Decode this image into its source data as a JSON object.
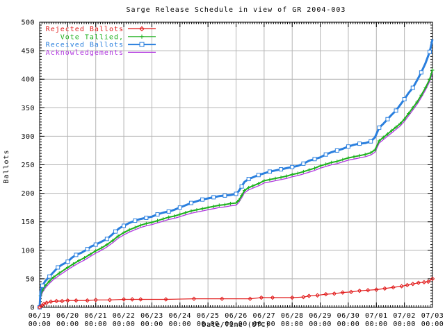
{
  "chart": {
    "title": "Sarge Release Schedule in view of GR 2004-003",
    "xlabel": "Date/Time (UTC)",
    "ylabel": "Ballots"
  },
  "chart_data": {
    "type": "line",
    "title": "Sarge Release Schedule in view of GR 2004-003",
    "xlabel": "Date/Time (UTC)",
    "ylabel": "Ballots",
    "x_unit": "days since 06/19 00:00 UTC",
    "xlim": [
      0,
      14
    ],
    "ylim": [
      0,
      500
    ],
    "grid": true,
    "legend_position": "top-left",
    "background": "#ffffff",
    "grid_color": "#b4b4b4",
    "border_color": "#000000",
    "y_ticks": [
      0,
      50,
      100,
      150,
      200,
      250,
      300,
      350,
      400,
      450,
      500
    ],
    "x_ticks": [
      {
        "date": "06/19",
        "time": "00:00"
      },
      {
        "date": "06/20",
        "time": "00:00"
      },
      {
        "date": "06/21",
        "time": "00:00"
      },
      {
        "date": "06/22",
        "time": "00:00"
      },
      {
        "date": "06/23",
        "time": "00:00"
      },
      {
        "date": "06/24",
        "time": "00:00"
      },
      {
        "date": "06/25",
        "time": "00:00"
      },
      {
        "date": "06/26",
        "time": "00:00"
      },
      {
        "date": "06/27",
        "time": "00:00"
      },
      {
        "date": "06/28",
        "time": "00:00"
      },
      {
        "date": "06/29",
        "time": "00:00"
      },
      {
        "date": "06/30",
        "time": "00:00"
      },
      {
        "date": "07/01",
        "time": "00:00"
      },
      {
        "date": "07/02",
        "time": "00:00"
      },
      {
        "date": "07/03",
        "time": "00:00"
      }
    ],
    "series": [
      {
        "name": "Rejected Ballots",
        "color": "#e11919",
        "marker": "diamond",
        "points": [
          [
            0,
            0
          ],
          [
            0.08,
            3
          ],
          [
            0.15,
            6
          ],
          [
            0.25,
            8
          ],
          [
            0.4,
            10
          ],
          [
            0.6,
            11
          ],
          [
            0.8,
            11
          ],
          [
            1.0,
            12
          ],
          [
            1.3,
            12
          ],
          [
            1.7,
            12
          ],
          [
            2.0,
            13
          ],
          [
            2.5,
            13
          ],
          [
            3.0,
            14
          ],
          [
            3.3,
            14
          ],
          [
            3.6,
            14
          ],
          [
            4.5,
            14
          ],
          [
            5.5,
            15
          ],
          [
            6.5,
            15
          ],
          [
            7.5,
            15
          ],
          [
            7.9,
            17
          ],
          [
            8.3,
            17
          ],
          [
            9.0,
            17
          ],
          [
            9.4,
            18
          ],
          [
            9.6,
            20
          ],
          [
            9.9,
            21
          ],
          [
            10.2,
            23
          ],
          [
            10.5,
            24
          ],
          [
            10.8,
            26
          ],
          [
            11.1,
            27
          ],
          [
            11.4,
            29
          ],
          [
            11.7,
            30
          ],
          [
            12.0,
            31
          ],
          [
            12.3,
            33
          ],
          [
            12.6,
            35
          ],
          [
            12.9,
            37
          ],
          [
            13.1,
            39
          ],
          [
            13.3,
            41
          ],
          [
            13.5,
            43
          ],
          [
            13.7,
            44
          ],
          [
            13.85,
            45
          ],
          [
            14,
            50
          ]
        ]
      },
      {
        "name": "Vote Tallied,",
        "color": "#1db01d",
        "marker": "plus",
        "points": [
          [
            0,
            0
          ],
          [
            0.03,
            20
          ],
          [
            0.1,
            30
          ],
          [
            0.2,
            38
          ],
          [
            0.35,
            46
          ],
          [
            0.5,
            53
          ],
          [
            0.7,
            60
          ],
          [
            1.0,
            70
          ],
          [
            1.2,
            76
          ],
          [
            1.4,
            82
          ],
          [
            1.6,
            87
          ],
          [
            1.8,
            93
          ],
          [
            2.0,
            99
          ],
          [
            2.2,
            104
          ],
          [
            2.4,
            110
          ],
          [
            2.6,
            117
          ],
          [
            2.8,
            125
          ],
          [
            3.0,
            131
          ],
          [
            3.2,
            136
          ],
          [
            3.4,
            140
          ],
          [
            3.6,
            144
          ],
          [
            3.8,
            147
          ],
          [
            4.0,
            149
          ],
          [
            4.2,
            152
          ],
          [
            4.4,
            155
          ],
          [
            4.6,
            158
          ],
          [
            4.8,
            160
          ],
          [
            5.0,
            163
          ],
          [
            5.2,
            166
          ],
          [
            5.4,
            169
          ],
          [
            5.6,
            171
          ],
          [
            5.8,
            173
          ],
          [
            6.0,
            175
          ],
          [
            6.2,
            177
          ],
          [
            6.4,
            179
          ],
          [
            6.6,
            180
          ],
          [
            6.8,
            182
          ],
          [
            7.0,
            183
          ],
          [
            7.1,
            188
          ],
          [
            7.2,
            196
          ],
          [
            7.3,
            205
          ],
          [
            7.45,
            210
          ],
          [
            7.6,
            213
          ],
          [
            7.8,
            217
          ],
          [
            8.0,
            222
          ],
          [
            8.2,
            224
          ],
          [
            8.4,
            226
          ],
          [
            8.6,
            228
          ],
          [
            8.8,
            230
          ],
          [
            9.0,
            233
          ],
          [
            9.2,
            235
          ],
          [
            9.4,
            238
          ],
          [
            9.6,
            241
          ],
          [
            9.8,
            244
          ],
          [
            10.0,
            248
          ],
          [
            10.2,
            251
          ],
          [
            10.4,
            254
          ],
          [
            10.6,
            256
          ],
          [
            10.8,
            259
          ],
          [
            11.0,
            262
          ],
          [
            11.2,
            264
          ],
          [
            11.4,
            266
          ],
          [
            11.6,
            268
          ],
          [
            11.8,
            271
          ],
          [
            11.95,
            276
          ],
          [
            12.1,
            292
          ],
          [
            12.25,
            298
          ],
          [
            12.4,
            304
          ],
          [
            12.55,
            310
          ],
          [
            12.7,
            316
          ],
          [
            12.85,
            322
          ],
          [
            13.0,
            330
          ],
          [
            13.15,
            340
          ],
          [
            13.3,
            350
          ],
          [
            13.45,
            360
          ],
          [
            13.6,
            372
          ],
          [
            13.75,
            385
          ],
          [
            13.9,
            400
          ],
          [
            14,
            416
          ]
        ]
      },
      {
        "name": "Received Ballots",
        "color": "#2a7fde",
        "marker": "square",
        "points": [
          [
            0,
            0
          ],
          [
            0.03,
            28
          ],
          [
            0.1,
            38
          ],
          [
            0.2,
            46
          ],
          [
            0.35,
            54
          ],
          [
            0.5,
            62
          ],
          [
            0.65,
            70
          ],
          [
            0.8,
            75
          ],
          [
            1.0,
            80
          ],
          [
            1.15,
            87
          ],
          [
            1.3,
            92
          ],
          [
            1.5,
            96
          ],
          [
            1.7,
            102
          ],
          [
            1.85,
            107
          ],
          [
            2.0,
            110
          ],
          [
            2.2,
            115
          ],
          [
            2.4,
            120
          ],
          [
            2.55,
            126
          ],
          [
            2.7,
            133
          ],
          [
            2.85,
            139
          ],
          [
            3.0,
            143
          ],
          [
            3.2,
            148
          ],
          [
            3.4,
            152
          ],
          [
            3.6,
            155
          ],
          [
            3.8,
            157
          ],
          [
            4.0,
            159
          ],
          [
            4.2,
            163
          ],
          [
            4.4,
            166
          ],
          [
            4.6,
            168
          ],
          [
            4.8,
            171
          ],
          [
            5.0,
            175
          ],
          [
            5.2,
            179
          ],
          [
            5.4,
            183
          ],
          [
            5.6,
            186
          ],
          [
            5.8,
            189
          ],
          [
            6.0,
            191
          ],
          [
            6.2,
            193
          ],
          [
            6.4,
            195
          ],
          [
            6.6,
            196
          ],
          [
            6.8,
            197
          ],
          [
            7.0,
            199
          ],
          [
            7.1,
            204
          ],
          [
            7.2,
            212
          ],
          [
            7.3,
            220
          ],
          [
            7.45,
            225
          ],
          [
            7.6,
            228
          ],
          [
            7.8,
            232
          ],
          [
            8.0,
            235
          ],
          [
            8.2,
            238
          ],
          [
            8.4,
            240
          ],
          [
            8.6,
            242
          ],
          [
            8.8,
            244
          ],
          [
            9.0,
            246
          ],
          [
            9.2,
            248
          ],
          [
            9.4,
            252
          ],
          [
            9.6,
            257
          ],
          [
            9.8,
            260
          ],
          [
            10.0,
            263
          ],
          [
            10.2,
            268
          ],
          [
            10.4,
            272
          ],
          [
            10.6,
            275
          ],
          [
            10.8,
            278
          ],
          [
            11.0,
            282
          ],
          [
            11.2,
            285
          ],
          [
            11.4,
            287
          ],
          [
            11.6,
            288
          ],
          [
            11.8,
            291
          ],
          [
            11.95,
            298
          ],
          [
            12.1,
            315
          ],
          [
            12.25,
            322
          ],
          [
            12.4,
            330
          ],
          [
            12.55,
            338
          ],
          [
            12.7,
            345
          ],
          [
            12.85,
            355
          ],
          [
            13.0,
            365
          ],
          [
            13.15,
            376
          ],
          [
            13.3,
            385
          ],
          [
            13.45,
            398
          ],
          [
            13.6,
            412
          ],
          [
            13.75,
            428
          ],
          [
            13.9,
            448
          ],
          [
            14,
            470
          ]
        ]
      },
      {
        "name": "Acknowledgements",
        "color": "#b136e0",
        "marker": "none",
        "points": [
          [
            0,
            0
          ],
          [
            0.03,
            16
          ],
          [
            0.1,
            26
          ],
          [
            0.2,
            34
          ],
          [
            0.35,
            42
          ],
          [
            0.5,
            49
          ],
          [
            0.7,
            56
          ],
          [
            1.0,
            66
          ],
          [
            1.2,
            72
          ],
          [
            1.4,
            78
          ],
          [
            1.6,
            83
          ],
          [
            1.8,
            89
          ],
          [
            2.0,
            95
          ],
          [
            2.2,
            100
          ],
          [
            2.4,
            106
          ],
          [
            2.6,
            113
          ],
          [
            2.8,
            121
          ],
          [
            3.0,
            127
          ],
          [
            3.2,
            132
          ],
          [
            3.4,
            136
          ],
          [
            3.6,
            140
          ],
          [
            3.8,
            143
          ],
          [
            4.0,
            145
          ],
          [
            4.2,
            148
          ],
          [
            4.4,
            151
          ],
          [
            4.6,
            154
          ],
          [
            4.8,
            156
          ],
          [
            5.0,
            159
          ],
          [
            5.2,
            162
          ],
          [
            5.4,
            165
          ],
          [
            5.6,
            167
          ],
          [
            5.8,
            169
          ],
          [
            6.0,
            171
          ],
          [
            6.2,
            173
          ],
          [
            6.4,
            175
          ],
          [
            6.6,
            176
          ],
          [
            6.8,
            178
          ],
          [
            7.0,
            179
          ],
          [
            7.1,
            184
          ],
          [
            7.2,
            192
          ],
          [
            7.3,
            201
          ],
          [
            7.45,
            206
          ],
          [
            7.6,
            209
          ],
          [
            7.8,
            213
          ],
          [
            8.0,
            218
          ],
          [
            8.2,
            220
          ],
          [
            8.4,
            222
          ],
          [
            8.6,
            224
          ],
          [
            8.8,
            226
          ],
          [
            9.0,
            229
          ],
          [
            9.2,
            231
          ],
          [
            9.4,
            234
          ],
          [
            9.6,
            237
          ],
          [
            9.8,
            240
          ],
          [
            10.0,
            244
          ],
          [
            10.2,
            247
          ],
          [
            10.4,
            250
          ],
          [
            10.6,
            252
          ],
          [
            10.8,
            255
          ],
          [
            11.0,
            258
          ],
          [
            11.2,
            260
          ],
          [
            11.4,
            262
          ],
          [
            11.6,
            264
          ],
          [
            11.8,
            267
          ],
          [
            11.95,
            272
          ],
          [
            12.1,
            288
          ],
          [
            12.25,
            294
          ],
          [
            12.4,
            300
          ],
          [
            12.55,
            306
          ],
          [
            12.7,
            312
          ],
          [
            12.85,
            318
          ],
          [
            13.0,
            326
          ],
          [
            13.15,
            336
          ],
          [
            13.3,
            346
          ],
          [
            13.45,
            356
          ],
          [
            13.6,
            368
          ],
          [
            13.75,
            381
          ],
          [
            13.9,
            396
          ],
          [
            14,
            412
          ]
        ]
      }
    ],
    "legend": [
      {
        "label": "Rejected Ballots"
      },
      {
        "label": "Vote Tallied,"
      },
      {
        "label": "Received Ballots"
      },
      {
        "label": "Acknowledgements"
      }
    ]
  }
}
